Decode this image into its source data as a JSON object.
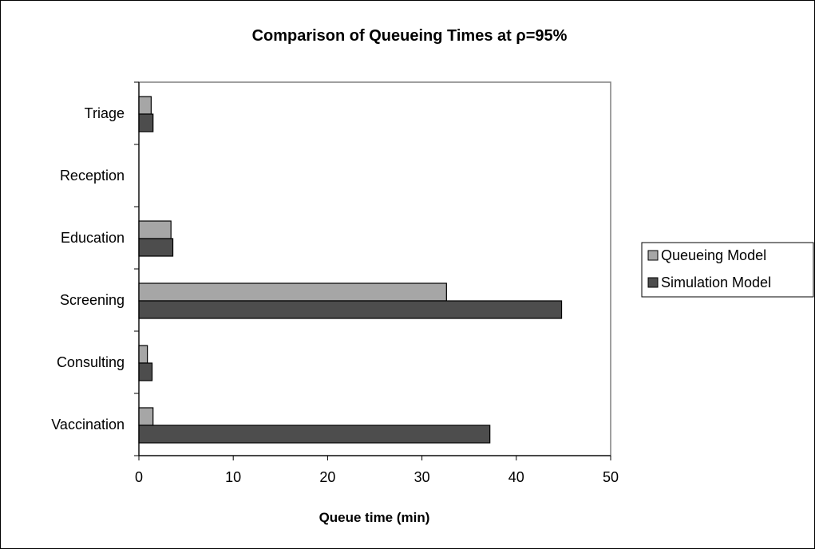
{
  "chart_data": {
    "type": "bar",
    "orientation": "horizontal",
    "title": "Comparison of Queueing Times at ρ=95%",
    "xlabel": "Queue time (min)",
    "ylabel": "",
    "xlim": [
      0,
      50
    ],
    "x_ticks": [
      "0",
      "10",
      "20",
      "30",
      "40",
      "50"
    ],
    "categories": [
      "Triage",
      "Reception",
      "Education",
      "Screening",
      "Consulting",
      "Vaccination"
    ],
    "series": [
      {
        "name": "Queueing Model",
        "color": "#a6a6a6",
        "values": [
          1.3,
          0,
          3.4,
          32.6,
          0.9,
          1.5
        ]
      },
      {
        "name": "Simulation Model",
        "color": "#4d4d4d",
        "values": [
          1.5,
          0,
          3.6,
          44.8,
          1.4,
          37.2
        ]
      }
    ],
    "legend_position": "right",
    "grid": false
  }
}
